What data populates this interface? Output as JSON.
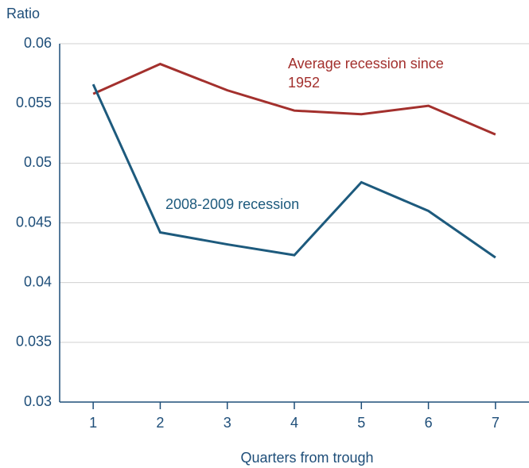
{
  "chart_data": {
    "type": "line",
    "y_label": "Ratio",
    "x_label": "Quarters from trough",
    "x": [
      1,
      2,
      3,
      4,
      5,
      6,
      7
    ],
    "xlim": [
      0.5,
      7.5
    ],
    "xticks": [
      1,
      2,
      3,
      4,
      5,
      6,
      7
    ],
    "ylim": [
      0.03,
      0.06
    ],
    "yticks": [
      0.03,
      0.035,
      0.04,
      0.045,
      0.05,
      0.055,
      0.06
    ],
    "grid": true,
    "series": [
      {
        "name": "Average recession since 1952",
        "color": "#a3302d",
        "values": [
          0.0558,
          0.0583,
          0.0561,
          0.0544,
          0.0541,
          0.0548,
          0.0524
        ]
      },
      {
        "name": "2008-2009 recession",
        "color": "#1d5a7d",
        "values": [
          0.0566,
          0.0442,
          0.0432,
          0.0423,
          0.0484,
          0.046,
          0.0421
        ]
      }
    ]
  }
}
